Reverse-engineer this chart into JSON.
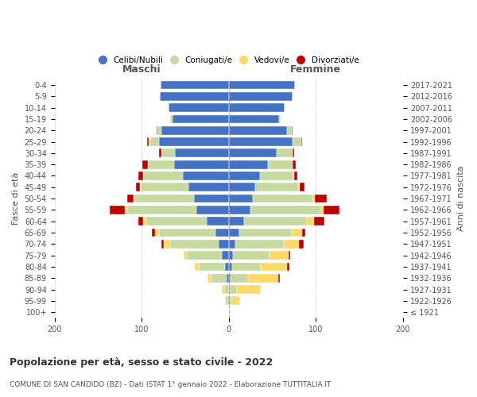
{
  "age_groups": [
    "100+",
    "95-99",
    "90-94",
    "85-89",
    "80-84",
    "75-79",
    "70-74",
    "65-69",
    "60-64",
    "55-59",
    "50-54",
    "45-49",
    "40-44",
    "35-39",
    "30-34",
    "25-29",
    "20-24",
    "15-19",
    "10-14",
    "5-9",
    "0-4"
  ],
  "birth_years": [
    "≤ 1921",
    "1922-1926",
    "1927-1931",
    "1932-1936",
    "1937-1941",
    "1942-1946",
    "1947-1951",
    "1952-1956",
    "1957-1961",
    "1962-1966",
    "1967-1971",
    "1972-1976",
    "1977-1981",
    "1982-1986",
    "1987-1991",
    "1992-1996",
    "1997-2001",
    "2002-2006",
    "2007-2011",
    "2012-2016",
    "2017-2021"
  ],
  "male": {
    "celibi": [
      0,
      1,
      0,
      2,
      4,
      8,
      12,
      15,
      25,
      37,
      40,
      46,
      53,
      63,
      62,
      80,
      77,
      65,
      69,
      79,
      78
    ],
    "coniugati": [
      0,
      2,
      5,
      18,
      30,
      40,
      55,
      65,
      70,
      80,
      68,
      55,
      45,
      30,
      15,
      10,
      5,
      2,
      0,
      0,
      0
    ],
    "vedovi": [
      0,
      1,
      3,
      4,
      5,
      4,
      8,
      5,
      3,
      2,
      1,
      1,
      0,
      0,
      0,
      2,
      0,
      0,
      0,
      0,
      0
    ],
    "divorziati": [
      0,
      0,
      0,
      0,
      0,
      0,
      2,
      3,
      6,
      18,
      8,
      5,
      6,
      6,
      3,
      2,
      1,
      0,
      0,
      0,
      0
    ]
  },
  "female": {
    "nubili": [
      0,
      1,
      1,
      2,
      4,
      5,
      8,
      12,
      18,
      25,
      28,
      30,
      36,
      45,
      55,
      73,
      67,
      58,
      64,
      73,
      76
    ],
    "coniugate": [
      0,
      2,
      8,
      20,
      33,
      42,
      55,
      60,
      72,
      80,
      68,
      50,
      38,
      28,
      18,
      10,
      5,
      2,
      0,
      0,
      0
    ],
    "vedove": [
      0,
      10,
      28,
      35,
      30,
      22,
      18,
      12,
      8,
      4,
      3,
      2,
      1,
      0,
      0,
      0,
      0,
      0,
      0,
      0,
      0
    ],
    "divorziate": [
      0,
      0,
      0,
      2,
      3,
      2,
      5,
      4,
      12,
      18,
      14,
      5,
      4,
      4,
      2,
      1,
      1,
      0,
      0,
      0,
      0
    ]
  },
  "colors": {
    "celibi": "#4472c4",
    "coniugati": "#c5d9a0",
    "vedovi": "#ffd966",
    "divorziati": "#c00000"
  },
  "xlim": 200,
  "title": "Popolazione per età, sesso e stato civile - 2022",
  "subtitle": "COMUNE DI SAN CANDIDO (BZ) - Dati ISTAT 1° gennaio 2022 - Elaborazione TUTTITALIA.IT",
  "ylabel": "Fasce di età",
  "ylabel_right": "Anni di nascita",
  "xlabel_left": "Maschi",
  "xlabel_right": "Femmine",
  "legend_labels": [
    "Celibi/Nubili",
    "Coniugati/e",
    "Vedovi/e",
    "Divorziati/e"
  ],
  "bg_color": "#ffffff",
  "grid_color": "#cccccc"
}
